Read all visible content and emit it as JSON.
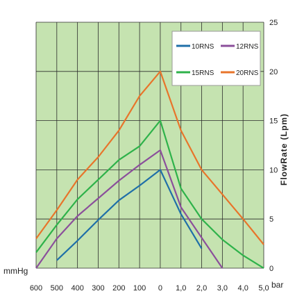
{
  "chart_data": {
    "type": "line",
    "x_ticks": [
      "600",
      "500",
      "400",
      "300",
      "200",
      "100",
      "0",
      "1,0",
      "2,0",
      "3,0",
      "4,0",
      "5,0"
    ],
    "x_unit_left": "mmHg",
    "x_unit_right": "bar",
    "y_ticks": [
      "0",
      "5",
      "10",
      "15",
      "20",
      "25"
    ],
    "ylabel": "FlowRate (Lpm)",
    "ylim": [
      0,
      25
    ],
    "grid": true,
    "legend_position": "top-right",
    "background_color": "#c5e3b0",
    "series": [
      {
        "name": "10RNS",
        "color": "#1f6fa8",
        "points": [
          {
            "x": "500",
            "y": 0.8
          },
          {
            "x": "400",
            "y": 2.8
          },
          {
            "x": "300",
            "y": 4.9
          },
          {
            "x": "200",
            "y": 6.9
          },
          {
            "x": "100",
            "y": 8.4
          },
          {
            "x": "0",
            "y": 10
          },
          {
            "x": "1,0",
            "y": 5.5
          },
          {
            "x": "2,0",
            "y": 2.0
          }
        ]
      },
      {
        "name": "12RNS",
        "color": "#8b4f9b",
        "points": [
          {
            "x": "600",
            "y": 0
          },
          {
            "x": "500",
            "y": 3
          },
          {
            "x": "400",
            "y": 5.3
          },
          {
            "x": "300",
            "y": 7.1
          },
          {
            "x": "200",
            "y": 8.9
          },
          {
            "x": "100",
            "y": 10.5
          },
          {
            "x": "0",
            "y": 12
          },
          {
            "x": "1,0",
            "y": 6.2
          },
          {
            "x": "2,0",
            "y": 3.1
          },
          {
            "x": "3,0",
            "y": 0
          }
        ]
      },
      {
        "name": "15RNS",
        "color": "#2eb24a",
        "points": [
          {
            "x": "600",
            "y": 1.6
          },
          {
            "x": "500",
            "y": 4.4
          },
          {
            "x": "400",
            "y": 7.0
          },
          {
            "x": "300",
            "y": 9.0
          },
          {
            "x": "200",
            "y": 11.0
          },
          {
            "x": "100",
            "y": 12.4
          },
          {
            "x": "0",
            "y": 15
          },
          {
            "x": "1,0",
            "y": 8.1
          },
          {
            "x": "2,0",
            "y": 5.0
          },
          {
            "x": "3,0",
            "y": 2.9
          },
          {
            "x": "4,0",
            "y": 1.3
          },
          {
            "x": "5,0",
            "y": 0
          }
        ]
      },
      {
        "name": "20RNS",
        "color": "#e8742a",
        "points": [
          {
            "x": "600",
            "y": 3.0
          },
          {
            "x": "500",
            "y": 5.9
          },
          {
            "x": "400",
            "y": 9.0
          },
          {
            "x": "300",
            "y": 11.3
          },
          {
            "x": "200",
            "y": 14.0
          },
          {
            "x": "100",
            "y": 17.5
          },
          {
            "x": "0",
            "y": 20
          },
          {
            "x": "1,0",
            "y": 14.0
          },
          {
            "x": "2,0",
            "y": 10.0
          },
          {
            "x": "3,0",
            "y": 7.5
          },
          {
            "x": "4,0",
            "y": 5.0
          },
          {
            "x": "5,0",
            "y": 2.4
          }
        ]
      }
    ]
  }
}
